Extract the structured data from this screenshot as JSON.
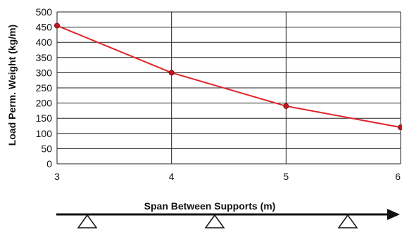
{
  "chart_data": {
    "type": "line",
    "title": "",
    "xlabel": "Span Between Supports (m)",
    "ylabel": "Load Perm. Weight (kg/m)",
    "x": [
      3,
      4,
      5,
      6
    ],
    "xlim": [
      3,
      6
    ],
    "ylim": [
      0,
      500
    ],
    "x_ticks": [
      "3",
      "4",
      "5",
      "6"
    ],
    "y_ticks": [
      "0",
      "50",
      "100",
      "150",
      "200",
      "250",
      "300",
      "350",
      "400",
      "450",
      "500"
    ],
    "series": [
      {
        "values": [
          455,
          300,
          190,
          120
        ]
      }
    ],
    "grid": true,
    "line_color": "#e0262b",
    "marker_color": "#c8161c"
  }
}
